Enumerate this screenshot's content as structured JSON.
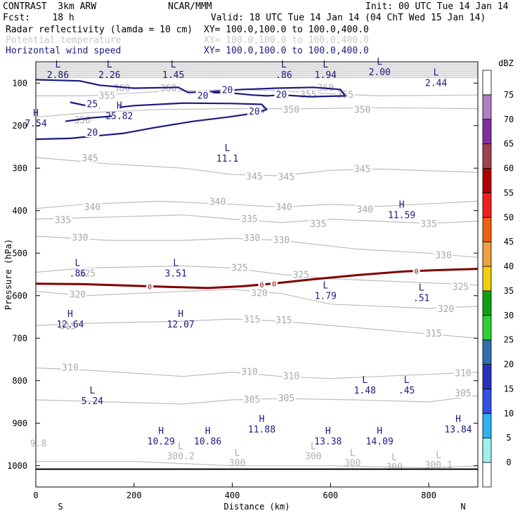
{
  "header": {
    "title": "CONTRAST  3km ARW",
    "org": "NCAR/MMM",
    "init": "Init: 00 UTC Tue 14 Jan 14",
    "fcst": "Fcst:    18 h",
    "valid": "Valid: 18 UTC Tue 14 Jan 14 (04 ChT Wed 15 Jan 14)",
    "fields": [
      {
        "name": "Radar reflectivity (lamda = 10 cm)",
        "xy": "XY= 100.0,100.0 to 100.0,400.0",
        "color": "#000000"
      },
      {
        "name": "Potential temperature",
        "xy": "XY= 100.0,100.0 to 100.0,400.0",
        "color": "#c8c8c8"
      },
      {
        "name": "Horizontal wind speed",
        "xy": "XY= 100.0,100.0 to 100.0,400.0",
        "color": "#1a1a80"
      }
    ]
  },
  "chart_data": {
    "type": "cross-section contour",
    "xlabel": "Distance (km)",
    "ylabel": "Pressure (hPa)",
    "xlim": [
      0,
      900
    ],
    "ylim": [
      1050,
      50
    ],
    "x_ticks": [
      0,
      200,
      400,
      600,
      800
    ],
    "y_ticks": [
      100,
      200,
      300,
      400,
      500,
      600,
      700,
      800,
      900,
      1000
    ],
    "x_endpoints": {
      "left": "S",
      "right": "N"
    },
    "colorbar": {
      "unit": "dBZ",
      "levels": [
        0,
        5,
        10,
        15,
        20,
        25,
        30,
        35,
        40,
        45,
        50,
        55,
        60,
        65,
        70,
        75
      ],
      "colors": [
        "#ffffff",
        "#a0f0f0",
        "#30b0f0",
        "#3050e0",
        "#2830c0",
        "#3070b0",
        "#30d030",
        "#10a010",
        "#f0d010",
        "#f0a040",
        "#f06010",
        "#f02020",
        "#b00000",
        "#a04050",
        "#8030a0",
        "#b080c0",
        "#ffffff"
      ]
    },
    "theta_contours": [
      {
        "level": 355,
        "label": "355",
        "p": [
          [
            0,
            130
          ],
          [
            100,
            130
          ],
          [
            250,
            120
          ],
          [
            400,
            115
          ],
          [
            500,
            118
          ],
          [
            600,
            125
          ],
          [
            700,
            130
          ],
          [
            900,
            128
          ]
        ]
      },
      {
        "level": 350,
        "label": "350",
        "p": [
          [
            0,
            180
          ],
          [
            100,
            170
          ],
          [
            250,
            162
          ],
          [
            400,
            160
          ],
          [
            550,
            160
          ],
          [
            700,
            158
          ],
          [
            900,
            160
          ]
        ]
      },
      {
        "level": 345,
        "label": "345",
        "p": [
          [
            0,
            275
          ],
          [
            150,
            290
          ],
          [
            300,
            300
          ],
          [
            400,
            315
          ],
          [
            500,
            318
          ],
          [
            600,
            305
          ],
          [
            700,
            302
          ],
          [
            900,
            310
          ]
        ]
      },
      {
        "level": 340,
        "label": "340",
        "p": [
          [
            0,
            395
          ],
          [
            100,
            385
          ],
          [
            250,
            378
          ],
          [
            400,
            385
          ],
          [
            500,
            392
          ],
          [
            600,
            385
          ],
          [
            700,
            390
          ],
          [
            900,
            378
          ]
        ]
      },
      {
        "level": 335,
        "label": "335",
        "p": [
          [
            0,
            420
          ],
          [
            150,
            415
          ],
          [
            300,
            410
          ],
          [
            400,
            420
          ],
          [
            500,
            428
          ],
          [
            600,
            420
          ],
          [
            800,
            430
          ],
          [
            900,
            425
          ]
        ]
      },
      {
        "level": 330,
        "label": "330",
        "p": [
          [
            0,
            460
          ],
          [
            150,
            470
          ],
          [
            300,
            470
          ],
          [
            400,
            465
          ],
          [
            500,
            470
          ],
          [
            650,
            490
          ],
          [
            800,
            500
          ],
          [
            900,
            510
          ]
        ]
      },
      {
        "level": 325,
        "label": "325",
        "p": [
          [
            0,
            545
          ],
          [
            100,
            535
          ],
          [
            300,
            530
          ],
          [
            400,
            535
          ],
          [
            500,
            550
          ],
          [
            600,
            560
          ],
          [
            800,
            570
          ],
          [
            900,
            575
          ]
        ]
      },
      {
        "level": 320,
        "label": "320",
        "p": [
          [
            0,
            590
          ],
          [
            100,
            600
          ],
          [
            300,
            590
          ],
          [
            400,
            585
          ],
          [
            500,
            595
          ],
          [
            600,
            620
          ],
          [
            800,
            630
          ],
          [
            900,
            625
          ]
        ]
      },
      {
        "level": 315,
        "label": "315",
        "p": [
          [
            0,
            670
          ],
          [
            100,
            665
          ],
          [
            300,
            660
          ],
          [
            400,
            655
          ],
          [
            500,
            660
          ],
          [
            600,
            670
          ],
          [
            800,
            690
          ],
          [
            900,
            700
          ]
        ]
      },
      {
        "level": 310,
        "label": "310",
        "p": [
          [
            0,
            770
          ],
          [
            100,
            775
          ],
          [
            300,
            790
          ],
          [
            400,
            780
          ],
          [
            500,
            790
          ],
          [
            600,
            795
          ],
          [
            800,
            785
          ],
          [
            900,
            780
          ]
        ]
      },
      {
        "level": 305,
        "label": "305",
        "p": [
          [
            0,
            845
          ],
          [
            150,
            850
          ],
          [
            300,
            855
          ],
          [
            400,
            845
          ],
          [
            500,
            842
          ],
          [
            650,
            845
          ],
          [
            800,
            850
          ],
          [
            900,
            835
          ]
        ]
      },
      {
        "level": 300,
        "label": "300",
        "p": [
          [
            0,
            990
          ],
          [
            200,
            990
          ],
          [
            400,
            1000
          ],
          [
            600,
            1000
          ],
          [
            800,
            1005
          ],
          [
            900,
            1000
          ]
        ]
      }
    ],
    "theta_labels": [
      {
        "x": 175,
        "p": 113,
        "t": "360"
      },
      {
        "x": 270,
        "p": 113,
        "t": "360"
      },
      {
        "x": 590,
        "p": 112,
        "t": "360"
      },
      {
        "x": 145,
        "p": 130,
        "t": "355"
      },
      {
        "x": 555,
        "p": 128,
        "t": "355"
      },
      {
        "x": 630,
        "p": 128,
        "t": "355"
      },
      {
        "x": 95,
        "p": 188,
        "t": "350"
      },
      {
        "x": 450,
        "p": 165,
        "t": "350"
      },
      {
        "x": 520,
        "p": 163,
        "t": "350"
      },
      {
        "x": 665,
        "p": 163,
        "t": "350"
      },
      {
        "x": 110,
        "p": 277,
        "t": "345"
      },
      {
        "x": 445,
        "p": 320,
        "t": "345"
      },
      {
        "x": 510,
        "p": 321,
        "t": "345"
      },
      {
        "x": 665,
        "p": 303,
        "t": "345"
      },
      {
        "x": 115,
        "p": 392,
        "t": "340"
      },
      {
        "x": 370,
        "p": 380,
        "t": "340"
      },
      {
        "x": 505,
        "p": 392,
        "t": "340"
      },
      {
        "x": 670,
        "p": 398,
        "t": "340"
      },
      {
        "x": 55,
        "p": 423,
        "t": "335"
      },
      {
        "x": 435,
        "p": 420,
        "t": "335"
      },
      {
        "x": 575,
        "p": 432,
        "t": "335"
      },
      {
        "x": 800,
        "p": 432,
        "t": "335"
      },
      {
        "x": 90,
        "p": 464,
        "t": "330"
      },
      {
        "x": 440,
        "p": 465,
        "t": "330"
      },
      {
        "x": 500,
        "p": 470,
        "t": "330"
      },
      {
        "x": 830,
        "p": 505,
        "t": "330"
      },
      {
        "x": 105,
        "p": 548,
        "t": "325"
      },
      {
        "x": 415,
        "p": 535,
        "t": "325"
      },
      {
        "x": 540,
        "p": 552,
        "t": "325"
      },
      {
        "x": 865,
        "p": 580,
        "t": "325"
      },
      {
        "x": 85,
        "p": 598,
        "t": "320"
      },
      {
        "x": 455,
        "p": 595,
        "t": "320"
      },
      {
        "x": 835,
        "p": 632,
        "t": "320"
      },
      {
        "x": 65,
        "p": 672,
        "t": "315"
      },
      {
        "x": 440,
        "p": 657,
        "t": "315"
      },
      {
        "x": 505,
        "p": 658,
        "t": "315"
      },
      {
        "x": 810,
        "p": 690,
        "t": "315"
      },
      {
        "x": 70,
        "p": 770,
        "t": "310"
      },
      {
        "x": 435,
        "p": 780,
        "t": "310"
      },
      {
        "x": 520,
        "p": 790,
        "t": "310"
      },
      {
        "x": 870,
        "p": 783,
        "t": "310"
      },
      {
        "x": 440,
        "p": 845,
        "t": "305"
      },
      {
        "x": 510,
        "p": 842,
        "t": "305"
      },
      {
        "x": 870,
        "p": 830,
        "t": "305"
      }
    ],
    "theta_extrema": [
      {
        "x": 5,
        "p": 955,
        "kind": "",
        "value": "9.8"
      },
      {
        "x": 295,
        "p": 985,
        "kind": "L",
        "value": "300.2"
      },
      {
        "x": 410,
        "p": 1000,
        "kind": "L",
        "value": "300"
      },
      {
        "x": 565,
        "p": 985,
        "kind": "L",
        "value": "300"
      },
      {
        "x": 645,
        "p": 1000,
        "kind": "L",
        "value": "300"
      },
      {
        "x": 730,
        "p": 1010,
        "kind": "L",
        "value": "300"
      },
      {
        "x": 820,
        "p": 1005,
        "kind": "L",
        "value": "300.1"
      }
    ],
    "wind_contours": [
      {
        "level": 20,
        "p": [
          [
            0,
            92
          ],
          [
            90,
            95
          ],
          [
            130,
            105
          ],
          [
            200,
            112
          ],
          [
            290,
            110
          ],
          [
            310,
            122
          ],
          [
            360,
            120
          ],
          [
            420,
            115
          ],
          [
            490,
            112
          ],
          [
            565,
            110
          ],
          [
            620,
            115
          ],
          [
            630,
            130
          ],
          [
            560,
            132
          ],
          [
            500,
            128
          ],
          [
            470,
            130
          ],
          [
            440,
            128
          ],
          [
            405,
            124
          ],
          [
            360,
            122
          ]
        ]
      },
      {
        "level": 20,
        "p": [
          [
            0,
            232
          ],
          [
            70,
            230
          ],
          [
            180,
            218
          ],
          [
            240,
            205
          ],
          [
            320,
            190
          ],
          [
            390,
            180
          ],
          [
            450,
            170
          ],
          [
            470,
            162
          ],
          [
            460,
            150
          ],
          [
            400,
            148
          ],
          [
            300,
            147
          ],
          [
            200,
            153
          ],
          [
            170,
            157
          ]
        ]
      },
      {
        "level": 25,
        "p": [
          [
            70,
            145
          ],
          [
            110,
            155
          ],
          [
            130,
            158
          ]
        ]
      },
      {
        "level": 20,
        "p": [
          [
            60,
            190
          ],
          [
            110,
            182
          ],
          [
            155,
            178
          ]
        ]
      }
    ],
    "wind_labels": [
      {
        "x": 390,
        "p": 117,
        "t": "20"
      },
      {
        "x": 340,
        "p": 130,
        "t": "20"
      },
      {
        "x": 500,
        "p": 128,
        "t": "20"
      },
      {
        "x": 445,
        "p": 167,
        "t": "20"
      },
      {
        "x": 115,
        "p": 150,
        "t": "25"
      },
      {
        "x": 115,
        "p": 217,
        "t": "20"
      }
    ],
    "wind_extrema": [
      {
        "x": 45,
        "p": 63,
        "kind": "L",
        "value": "2.86"
      },
      {
        "x": 150,
        "p": 63,
        "kind": "L",
        "value": "2.26"
      },
      {
        "x": 280,
        "p": 63,
        "kind": "L",
        "value": "1.45"
      },
      {
        "x": 505,
        "p": 63,
        "kind": "L",
        "value": ".86"
      },
      {
        "x": 590,
        "p": 63,
        "kind": "L",
        "value": "1.94"
      },
      {
        "x": 700,
        "p": 57,
        "kind": "L",
        "value": "2.00"
      },
      {
        "x": 815,
        "p": 82,
        "kind": "L",
        "value": "2.44"
      },
      {
        "x": 0,
        "p": 177,
        "kind": "H",
        "value": "7.54"
      },
      {
        "x": 170,
        "p": 160,
        "kind": "H",
        "value": "25.82"
      },
      {
        "x": 390,
        "p": 260,
        "kind": "L",
        "value": "11.1"
      },
      {
        "x": 745,
        "p": 393,
        "kind": "H",
        "value": "11.59"
      },
      {
        "x": 85,
        "p": 530,
        "kind": "L",
        "value": ".86"
      },
      {
        "x": 285,
        "p": 530,
        "kind": "L",
        "value": "3.51"
      },
      {
        "x": 590,
        "p": 583,
        "kind": "L",
        "value": "1.79"
      },
      {
        "x": 785,
        "p": 588,
        "kind": "L",
        "value": ".51"
      },
      {
        "x": 70,
        "p": 650,
        "kind": "H",
        "value": "12.64"
      },
      {
        "x": 295,
        "p": 650,
        "kind": "H",
        "value": "12.07"
      },
      {
        "x": 670,
        "p": 805,
        "kind": "L",
        "value": "1.48"
      },
      {
        "x": 755,
        "p": 805,
        "kind": "L",
        "value": ".45"
      },
      {
        "x": 115,
        "p": 830,
        "kind": "L",
        "value": "5.24"
      },
      {
        "x": 460,
        "p": 897,
        "kind": "H",
        "value": "11.88"
      },
      {
        "x": 860,
        "p": 897,
        "kind": "H",
        "value": "13.84"
      },
      {
        "x": 255,
        "p": 925,
        "kind": "H",
        "value": "10.29"
      },
      {
        "x": 350,
        "p": 925,
        "kind": "H",
        "value": "10.86"
      },
      {
        "x": 595,
        "p": 925,
        "kind": "H",
        "value": "13.38"
      },
      {
        "x": 700,
        "p": 925,
        "kind": "H",
        "value": "14.09"
      }
    ],
    "freezing_line": {
      "color": "#800000",
      "label": "0",
      "p": [
        [
          0,
          572
        ],
        [
          100,
          573
        ],
        [
          230,
          578
        ],
        [
          350,
          582
        ],
        [
          420,
          578
        ],
        [
          480,
          572
        ],
        [
          560,
          562
        ],
        [
          650,
          552
        ],
        [
          750,
          543
        ],
        [
          820,
          540
        ],
        [
          900,
          537
        ]
      ],
      "label_x": [
        232,
        460,
        485,
        775
      ]
    },
    "surface_p": 1008
  }
}
